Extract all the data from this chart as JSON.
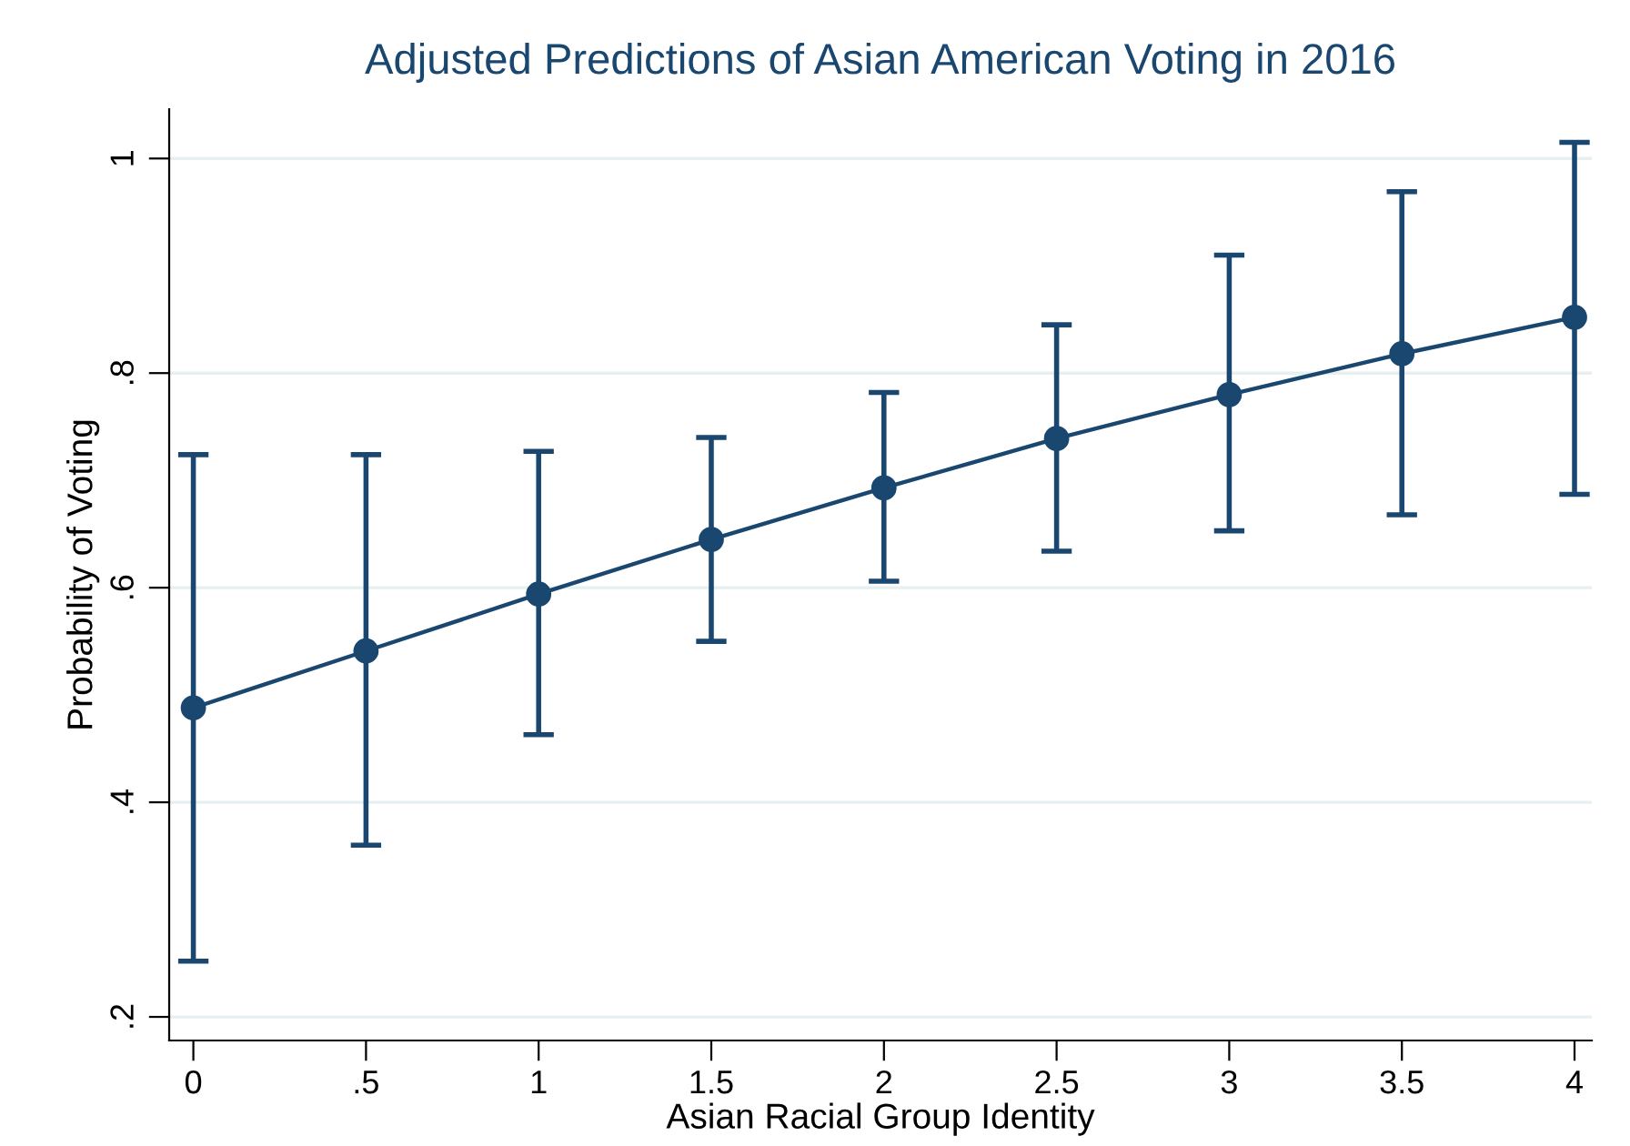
{
  "chart_data": {
    "type": "line",
    "title": "Adjusted Predictions of Asian American Voting in 2016",
    "xlabel": "Asian Racial Group Identity",
    "ylabel": "Probability of Voting",
    "x": [
      0,
      0.5,
      1,
      1.5,
      2,
      2.5,
      3,
      3.5,
      4
    ],
    "series": [
      {
        "color": "#1a476f",
        "values": [
          0.488,
          0.541,
          0.594,
          0.645,
          0.693,
          0.739,
          0.78,
          0.818,
          0.852
        ],
        "errors": [
          [
            0.252,
            0.724
          ],
          [
            0.36,
            0.724
          ],
          [
            0.463,
            0.727
          ],
          [
            0.55,
            0.74
          ],
          [
            0.606,
            0.782
          ],
          [
            0.634,
            0.845
          ],
          [
            0.653,
            0.91
          ],
          [
            0.668,
            0.969
          ],
          [
            0.687,
            1.015
          ]
        ]
      }
    ],
    "xlim": [
      -0.07,
      4.05
    ],
    "ylim": [
      0.178,
      1.046
    ],
    "xticks": [
      0,
      {
        "value": 0.5,
        "label": ".5"
      },
      1,
      1.5,
      2,
      2.5,
      3,
      3.5,
      4
    ],
    "yticks": [
      {
        "value": 0.2,
        "label": ".2"
      },
      {
        "value": 0.4,
        "label": ".4"
      },
      {
        "value": 0.6,
        "label": ".6"
      },
      {
        "value": 0.8,
        "label": ".8"
      },
      1
    ],
    "grid": "y",
    "marker": "circle",
    "line_style": "solid",
    "legend": false
  }
}
